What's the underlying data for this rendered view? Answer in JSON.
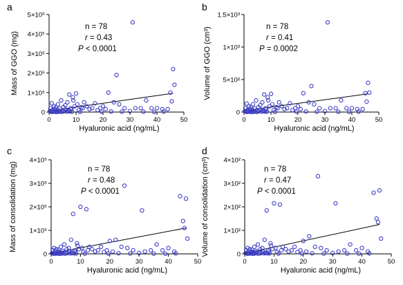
{
  "chart_data": [
    {
      "type": "scatter",
      "panel_label": "a",
      "xlabel": "Hyaluronic acid (ng/mL)",
      "ylabel": "Mass of GGO (mg)",
      "xlim": [
        0,
        50
      ],
      "ylim": [
        0,
        500000
      ],
      "xticks": [
        0,
        10,
        20,
        30,
        40,
        50
      ],
      "xtick_labels": [
        "0",
        "10",
        "20",
        "30",
        "40",
        "50"
      ],
      "yticks": [
        0,
        100000,
        200000,
        300000,
        400000,
        500000
      ],
      "ytick_labels": [
        "0",
        "1×10⁵",
        "2×10⁵",
        "3×10⁵",
        "4×10⁵",
        "5×10⁵"
      ],
      "annotations": {
        "n": "n = 78",
        "r_label": "r",
        "r_value": " = 0.43",
        "p_label": "P",
        "p_value": " < 0.0001"
      },
      "regression": [
        [
          0,
          6000
        ],
        [
          46,
          96000
        ]
      ],
      "x": [
        0.3,
        0.5,
        0.8,
        1,
        1.2,
        1.5,
        1.8,
        2,
        2.2,
        2.5,
        2.8,
        3,
        3.3,
        3.5,
        4,
        4.2,
        4.5,
        5,
        5.3,
        5.5,
        6,
        6.3,
        6.8,
        7,
        7.5,
        8,
        8.3,
        8.8,
        9,
        9.5,
        10,
        10.5,
        11,
        12,
        12.5,
        13,
        14,
        15,
        16,
        17,
        18,
        19,
        20,
        21,
        22,
        24,
        25,
        26,
        28,
        30,
        31,
        32,
        34,
        36,
        38,
        40,
        42,
        44,
        45,
        45.5,
        46,
        46.5,
        7.2,
        7.8,
        8.5,
        3.2,
        2.6,
        1.6,
        0.9,
        4.8,
        6.6,
        11.5,
        19.5,
        23,
        27,
        35,
        39,
        42.5
      ],
      "y": [
        5000,
        20000,
        2000,
        45000,
        10000,
        3000,
        30000,
        8000,
        15000,
        25000,
        2000,
        12000,
        40000,
        5000,
        18000,
        2000,
        60000,
        10000,
        25000,
        4000,
        35000,
        12000,
        50000,
        8000,
        90000,
        20000,
        15000,
        75000,
        60000,
        30000,
        95000,
        40000,
        10000,
        25000,
        20000,
        50000,
        30000,
        15000,
        20000,
        45000,
        10000,
        20000,
        30000,
        15000,
        100000,
        50000,
        190000,
        40000,
        20000,
        5000,
        460000,
        20000,
        20000,
        60000,
        20000,
        20000,
        15000,
        15000,
        100000,
        55000,
        220000,
        140000,
        5000,
        3000,
        2000,
        1000,
        500,
        1500,
        800,
        1200,
        2500,
        1000,
        2000,
        3000,
        2000,
        1500,
        1000,
        2500
      ]
    },
    {
      "type": "scatter",
      "panel_label": "b",
      "xlabel": "Hyaluronic acid (ng/mL)",
      "ylabel": "Volume of GGO (cm³)",
      "xlim": [
        0,
        50
      ],
      "ylim": [
        0,
        1500
      ],
      "xticks": [
        0,
        10,
        20,
        30,
        40,
        50
      ],
      "xtick_labels": [
        "0",
        "10",
        "20",
        "30",
        "40",
        "50"
      ],
      "yticks": [
        0,
        500,
        1000,
        1500
      ],
      "ytick_labels": [
        "0",
        "5×10²",
        "1×10³",
        "1.5×10³"
      ],
      "annotations": {
        "n": "n = 78",
        "r_label": "r",
        "r_value": " = 0.41",
        "p_label": "P",
        "p_value": " = 0.0002"
      },
      "regression": [
        [
          0,
          20
        ],
        [
          46,
          280
        ]
      ],
      "x": [
        0.3,
        0.5,
        0.8,
        1,
        1.2,
        1.5,
        1.8,
        2,
        2.2,
        2.5,
        2.8,
        3,
        3.3,
        3.5,
        4,
        4.2,
        4.5,
        5,
        5.3,
        5.5,
        6,
        6.3,
        6.8,
        7,
        7.5,
        8,
        8.3,
        8.8,
        9,
        9.5,
        10,
        10.5,
        11,
        12,
        12.5,
        13,
        14,
        15,
        16,
        17,
        18,
        19,
        20,
        21,
        22,
        24,
        25,
        26,
        28,
        30,
        31,
        32,
        34,
        36,
        38,
        40,
        42,
        44,
        45,
        45.5,
        46,
        46.5,
        7.2,
        7.8,
        8.5,
        3.2,
        2.6,
        1.6,
        0.9,
        4.8,
        6.6,
        11.5,
        19.5,
        23,
        27,
        35,
        39,
        42.5
      ],
      "y": [
        15,
        60,
        5,
        130,
        30,
        10,
        90,
        25,
        45,
        75,
        5,
        35,
        120,
        15,
        55,
        5,
        180,
        30,
        75,
        12,
        105,
        35,
        150,
        25,
        270,
        60,
        45,
        225,
        180,
        90,
        280,
        120,
        30,
        75,
        60,
        150,
        90,
        45,
        60,
        135,
        30,
        60,
        90,
        45,
        290,
        150,
        400,
        120,
        60,
        15,
        1380,
        60,
        60,
        180,
        60,
        60,
        45,
        45,
        290,
        160,
        450,
        300,
        15,
        8,
        5,
        3,
        2,
        4,
        2,
        3,
        7,
        3,
        6,
        9,
        6,
        4,
        3,
        7
      ]
    },
    {
      "type": "scatter",
      "panel_label": "c",
      "xlabel": "Hyaluronic acid (ng/mL)",
      "ylabel": "Mass of consolidation (mg)",
      "xlim": [
        0,
        50
      ],
      "ylim": [
        0,
        400000
      ],
      "xticks": [
        0,
        10,
        20,
        30,
        40,
        50
      ],
      "xtick_labels": [
        "0",
        "10",
        "20",
        "30",
        "40",
        "50"
      ],
      "yticks": [
        0,
        100000,
        200000,
        300000,
        400000
      ],
      "ytick_labels": [
        "0",
        "1×10⁵",
        "2×10⁵",
        "3×10⁵",
        "4×10⁵"
      ],
      "annotations": {
        "n": "n = 78",
        "r_label": "r",
        "r_value": " = 0.48",
        "p_label": "P",
        "p_value": " < 0.0001"
      },
      "regression": [
        [
          0,
          2000
        ],
        [
          46,
          110000
        ]
      ],
      "x": [
        0.3,
        0.5,
        0.8,
        1,
        1.2,
        1.5,
        1.8,
        2,
        2.2,
        2.5,
        2.8,
        3,
        3.3,
        3.5,
        4,
        4.2,
        4.5,
        5,
        5.3,
        5.5,
        6,
        6.3,
        6.8,
        7,
        7.5,
        8,
        8.3,
        8.8,
        9,
        9.5,
        10,
        10.5,
        11,
        12,
        12.5,
        13,
        14,
        15,
        16,
        17,
        18,
        19,
        20,
        21,
        22,
        24,
        25,
        26,
        28,
        30,
        31,
        32,
        34,
        36,
        38,
        40,
        42,
        44,
        45,
        45.5,
        46,
        46.5,
        7.2,
        7.8,
        8.5,
        3.2,
        2.6,
        1.6,
        0.9,
        4.8,
        6.6,
        11.5,
        19.5,
        23,
        27,
        35,
        39,
        42.5
      ],
      "y": [
        3000,
        15000,
        1000,
        25000,
        8000,
        2000,
        20000,
        5000,
        10000,
        18000,
        1000,
        8000,
        30000,
        4000,
        12000,
        1500,
        40000,
        6000,
        20000,
        3000,
        25000,
        8000,
        60000,
        5000,
        170000,
        15000,
        10000,
        45000,
        35000,
        20000,
        200000,
        25000,
        8000,
        190000,
        15000,
        30000,
        20000,
        10000,
        15000,
        30000,
        8000,
        15000,
        55000,
        10000,
        60000,
        30000,
        290000,
        25000,
        15000,
        4000,
        185000,
        10000,
        15000,
        40000,
        15000,
        25000,
        10000,
        245000,
        140000,
        110000,
        235000,
        65000,
        4000,
        2000,
        1500,
        800,
        400,
        1200,
        600,
        900,
        2000,
        800,
        1500,
        2500,
        1500,
        1200,
        800,
        2000
      ]
    },
    {
      "type": "scatter",
      "panel_label": "d",
      "xlabel": "Hyaluronic acid (ng/mL)",
      "ylabel": "Volume of consolidation (cm³)",
      "xlim": [
        0,
        50
      ],
      "ylim": [
        0,
        400
      ],
      "xticks": [
        0,
        10,
        20,
        30,
        40,
        50
      ],
      "xtick_labels": [
        "0",
        "10",
        "20",
        "30",
        "40",
        "50"
      ],
      "yticks": [
        0,
        100,
        200,
        300,
        400
      ],
      "ytick_labels": [
        "0",
        "1×10²",
        "2×10²",
        "3×10²",
        "4×10²"
      ],
      "annotations": {
        "n": "n = 78",
        "r_label": "r",
        "r_value": " = 0.47",
        "p_label": "P",
        "p_value": " < 0.0001"
      },
      "regression": [
        [
          0,
          2
        ],
        [
          46,
          125
        ]
      ],
      "x": [
        0.3,
        0.5,
        0.8,
        1,
        1.2,
        1.5,
        1.8,
        2,
        2.2,
        2.5,
        2.8,
        3,
        3.3,
        3.5,
        4,
        4.2,
        4.5,
        5,
        5.3,
        5.5,
        6,
        6.3,
        6.8,
        7,
        7.5,
        8,
        8.3,
        8.8,
        9,
        9.5,
        10,
        10.5,
        11,
        12,
        12.5,
        13,
        14,
        15,
        16,
        17,
        18,
        19,
        20,
        21,
        22,
        24,
        25,
        26,
        28,
        30,
        31,
        32,
        34,
        36,
        38,
        40,
        42,
        44,
        45,
        45.5,
        46,
        46.5,
        7.2,
        7.8,
        8.5,
        3.2,
        2.6,
        1.6,
        0.9,
        4.8,
        6.6,
        11.5,
        19.5,
        23,
        27,
        35,
        39,
        42.5
      ],
      "y": [
        3,
        15,
        1,
        25,
        8,
        2,
        20,
        5,
        10,
        18,
        1,
        8,
        30,
        4,
        12,
        2,
        40,
        6,
        20,
        3,
        25,
        8,
        60,
        5,
        185,
        15,
        10,
        45,
        35,
        20,
        215,
        25,
        8,
        210,
        15,
        30,
        20,
        10,
        15,
        30,
        8,
        15,
        55,
        10,
        75,
        30,
        330,
        25,
        15,
        4,
        215,
        10,
        15,
        40,
        15,
        25,
        10,
        260,
        150,
        135,
        270,
        65,
        4,
        2,
        2,
        1,
        0.5,
        1,
        0.6,
        1,
        2,
        1,
        1.5,
        2.5,
        1.5,
        1,
        1,
        2
      ]
    }
  ]
}
